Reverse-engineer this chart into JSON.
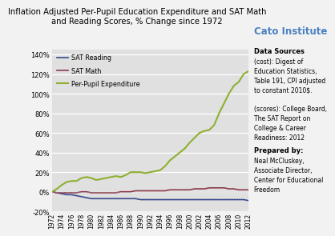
{
  "title": "Inflation Adjusted Per-Pupil Education Expenditure and SAT Math\nand Reading Scores, % Change since 1972",
  "years": [
    1972,
    1973,
    1974,
    1975,
    1976,
    1977,
    1978,
    1979,
    1980,
    1981,
    1982,
    1983,
    1984,
    1985,
    1986,
    1987,
    1988,
    1989,
    1990,
    1991,
    1992,
    1993,
    1994,
    1995,
    1996,
    1997,
    1998,
    1999,
    2000,
    2001,
    2002,
    2003,
    2004,
    2005,
    2006,
    2007,
    2008,
    2009,
    2010,
    2011,
    2012
  ],
  "sat_reading": [
    0,
    -1,
    -2,
    -3,
    -3,
    -4,
    -5,
    -6,
    -7,
    -7,
    -7,
    -7,
    -7,
    -7,
    -7,
    -7,
    -7,
    -7,
    -8,
    -8,
    -8,
    -8,
    -8,
    -8,
    -8,
    -8,
    -8,
    -8,
    -8,
    -8,
    -8,
    -8,
    -8,
    -8,
    -8,
    -8,
    -8,
    -8,
    -8,
    -8,
    -9
  ],
  "sat_math": [
    0,
    -1,
    -1,
    -1,
    -1,
    -1,
    0,
    0,
    -1,
    -1,
    -1,
    -1,
    -1,
    -1,
    0,
    0,
    0,
    1,
    1,
    1,
    1,
    1,
    1,
    1,
    2,
    2,
    2,
    2,
    2,
    3,
    3,
    3,
    4,
    4,
    4,
    4,
    3,
    3,
    2,
    2,
    2
  ],
  "per_pupil": [
    0,
    3,
    7,
    10,
    11,
    11,
    14,
    15,
    14,
    12,
    13,
    14,
    15,
    16,
    15,
    17,
    20,
    20,
    20,
    19,
    20,
    21,
    22,
    26,
    32,
    36,
    40,
    44,
    50,
    55,
    60,
    62,
    63,
    68,
    80,
    90,
    100,
    108,
    112,
    120,
    123
  ],
  "sat_reading_color": "#3a4a8c",
  "sat_math_color": "#8c3a4a",
  "per_pupil_color": "#8db030",
  "fig_bg_color": "#f2f2f2",
  "plot_bg_color": "#e0e0e0",
  "ylim": [
    -20,
    145
  ],
  "yticks": [
    -20,
    0,
    20,
    40,
    60,
    80,
    100,
    120,
    140
  ],
  "cato_color": "#4a80c0",
  "cato_text": "Cato Institute",
  "data_sources_bold": "Data Sources",
  "data_sources_body": "(cost): Digest of\nEducation Statistics,\nTable 191, CPI adjusted\nto constant 2010$.\n\n(scores): College Board,\nThe SAT Report on\nCollege & Career\nReadiness: 2012",
  "prepared_bold": "Prepared by:",
  "prepared_body": "Neal McCluskey,\nAssociate Director,\nCenter for Educational\nFreedom",
  "legend_labels": [
    "SAT Reading",
    "SAT Math",
    "Per-Pupil Expenditure"
  ]
}
